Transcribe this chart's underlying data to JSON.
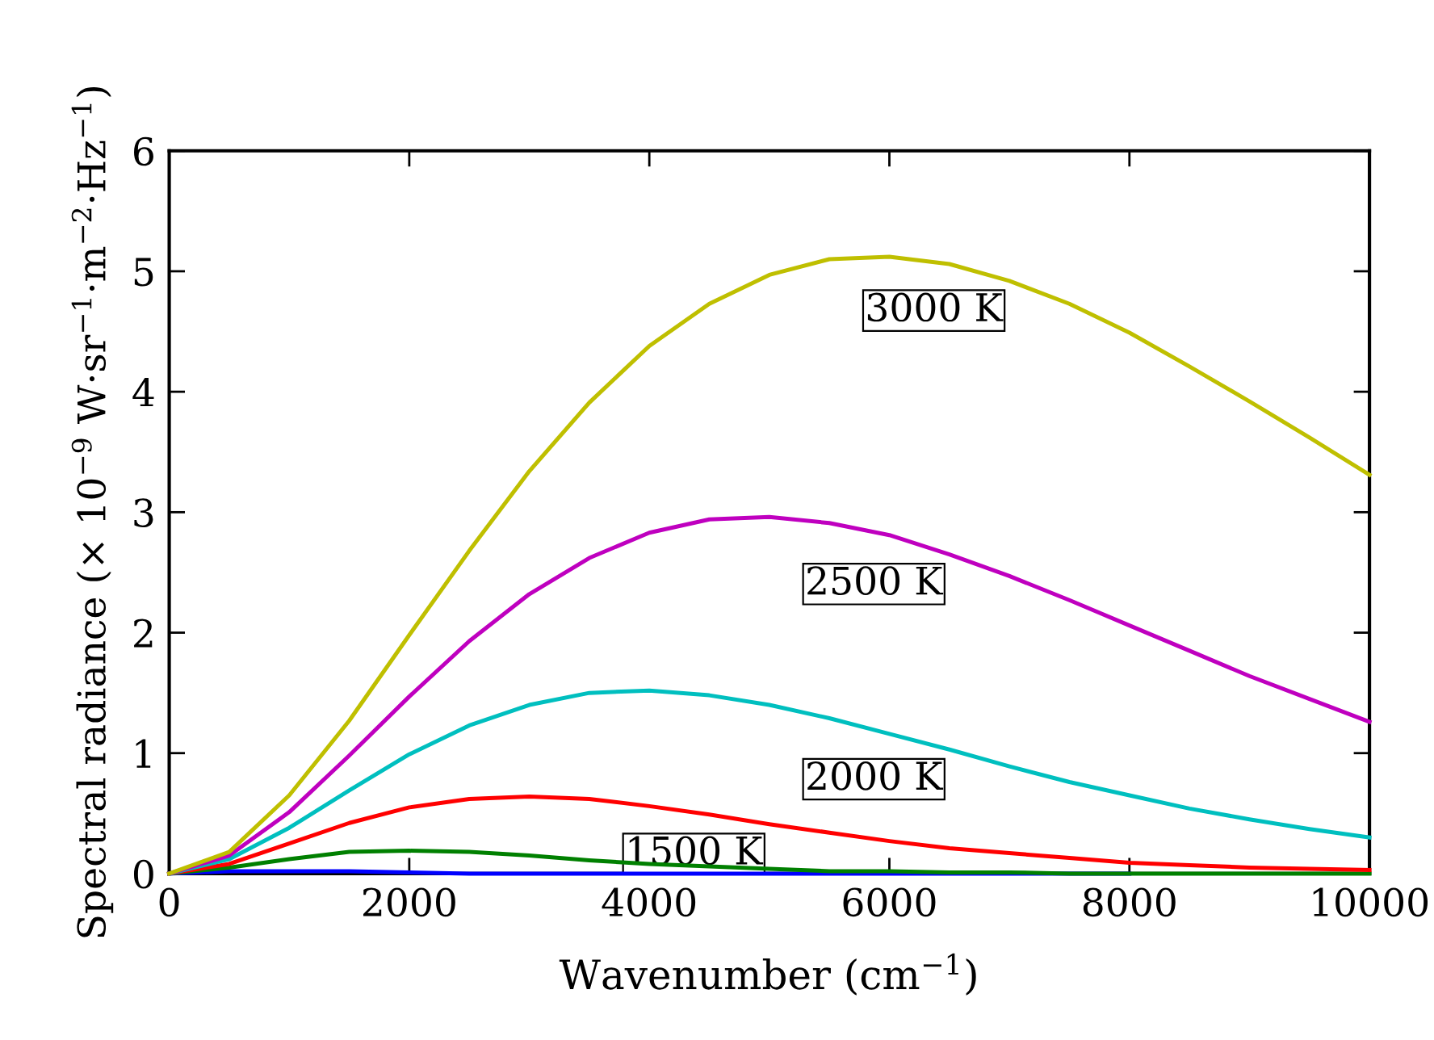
{
  "chart_data": {
    "type": "line",
    "xlabel": "Wavenumber (cm$^{−1}$)",
    "ylabel": "Spectral radiance (× 10$^{−9}$ W·sr$^{−1}$·m$^{−2}$·Hz$^{−1}$)",
    "x": [
      0,
      500,
      1000,
      1500,
      2000,
      2500,
      3000,
      3500,
      4000,
      4500,
      5000,
      5500,
      6000,
      6500,
      7000,
      7500,
      8000,
      8500,
      9000,
      9500,
      10000
    ],
    "series": [
      {
        "color": "#0000ff",
        "values": [
          0,
          0.02,
          0.02,
          0.02,
          0.01,
          0,
          0,
          0,
          0,
          0,
          0,
          0,
          0,
          0,
          0,
          0,
          0,
          null,
          null,
          null,
          null
        ]
      },
      {
        "color": "#008000",
        "values": [
          0,
          0.05,
          0.12,
          0.18,
          0.19,
          0.18,
          0.15,
          0.11,
          0.08,
          0.06,
          0.04,
          0.02,
          0.02,
          0.01,
          0.01,
          0,
          0,
          0,
          0,
          0,
          0
        ]
      },
      {
        "color": "#ff0000",
        "values": [
          0,
          0.08,
          0.25,
          0.42,
          0.55,
          0.62,
          0.64,
          0.62,
          0.56,
          0.49,
          0.41,
          0.34,
          0.27,
          0.21,
          0.17,
          0.13,
          0.09,
          0.07,
          0.05,
          0.04,
          0.03
        ]
      },
      {
        "color": "#00bfbf",
        "values": [
          0,
          0.12,
          0.38,
          0.69,
          0.99,
          1.23,
          1.4,
          1.5,
          1.52,
          1.48,
          1.4,
          1.29,
          1.16,
          1.03,
          0.89,
          0.76,
          0.65,
          0.54,
          0.45,
          0.37,
          0.3
        ]
      },
      {
        "color": "#bf00bf",
        "values": [
          0,
          0.15,
          0.51,
          0.98,
          1.47,
          1.93,
          2.32,
          2.62,
          2.83,
          2.94,
          2.96,
          2.91,
          2.81,
          2.65,
          2.47,
          2.27,
          2.06,
          1.85,
          1.64,
          1.45,
          1.26
        ]
      },
      {
        "color": "#bfbf00",
        "values": [
          0,
          0.18,
          0.65,
          1.27,
          1.98,
          2.68,
          3.34,
          3.91,
          4.38,
          4.73,
          4.97,
          5.1,
          5.12,
          5.06,
          4.92,
          4.73,
          4.49,
          4.21,
          3.92,
          3.62,
          3.31
        ]
      }
    ],
    "annotations": [
      {
        "text": "3000 K",
        "x": 7000,
        "y": 4.92
      },
      {
        "text": "2500 K",
        "x": 6500,
        "y": 2.65
      },
      {
        "text": "2000 K",
        "x": 6500,
        "y": 1.03
      },
      {
        "text": "1500 K",
        "x": 5000,
        "y": 0.41
      }
    ],
    "xlim": [
      0,
      10000
    ],
    "xticks": [
      0,
      2000,
      4000,
      6000,
      8000,
      10000
    ],
    "ylim": [
      0,
      6
    ],
    "yticks": [
      0,
      1,
      2,
      3,
      4,
      5,
      6
    ],
    "grid": false,
    "legend": false,
    "marker": "none",
    "line_style": "solid"
  }
}
